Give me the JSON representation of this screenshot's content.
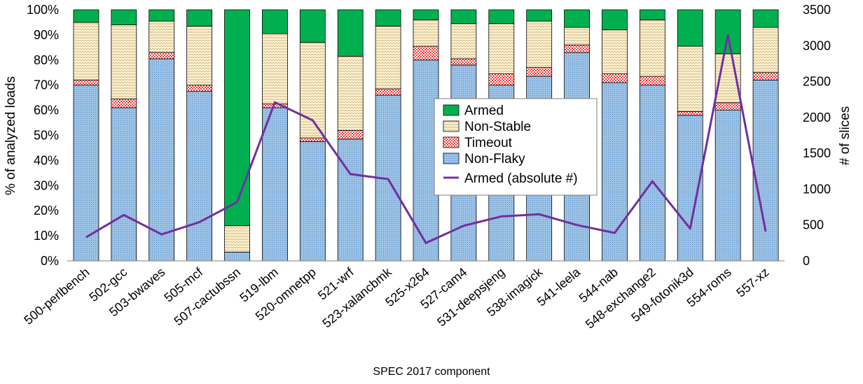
{
  "chart_data": {
    "type": "bar",
    "stacked": true,
    "title": "",
    "xlabel": "SPEC 2017 component",
    "ylabel": "% of analyzed loads",
    "y2label": "# of slices",
    "ylim": [
      0,
      100
    ],
    "y2lim": [
      0,
      3500
    ],
    "yticks": [
      "0%",
      "10%",
      "20%",
      "30%",
      "40%",
      "50%",
      "60%",
      "70%",
      "80%",
      "90%",
      "100%"
    ],
    "y2ticks": [
      "0",
      "500",
      "1000",
      "1500",
      "2000",
      "2500",
      "3000",
      "3500"
    ],
    "categories": [
      "500-perlbench",
      "502-gcc",
      "503-bwaves",
      "505-mcf",
      "507-cactubssn",
      "519-lbm",
      "520-omnetpp",
      "521-wrf",
      "523-xalancbmk",
      "525-x264",
      "527-cam4",
      "531-deepsjeng",
      "538-imagick",
      "541-leela",
      "544-nab",
      "548-exchange2",
      "549-fotonik3d",
      "554-roms",
      "557-xz"
    ],
    "series": [
      {
        "name": "Non-Flaky",
        "color": "#9dc3e6",
        "values": [
          70,
          61,
          80.5,
          67.5,
          3.5,
          61,
          47.5,
          48.5,
          66,
          80,
          78,
          70,
          73.5,
          83,
          71,
          70,
          58,
          60,
          72
        ]
      },
      {
        "name": "Timeout",
        "color": "#ff5a5a",
        "values": [
          2,
          3.5,
          2.5,
          2.5,
          0,
          1.5,
          1.5,
          3.5,
          2.5,
          5.5,
          2.5,
          4.5,
          3.5,
          3,
          3.5,
          3.5,
          1.5,
          3,
          3
        ]
      },
      {
        "name": "Non-Stable",
        "color": "#fff2cc",
        "values": [
          23,
          29.5,
          12.5,
          23.5,
          10.5,
          28,
          38,
          29.5,
          25,
          10.5,
          14,
          20,
          18.5,
          7,
          17.5,
          22.5,
          26,
          19.5,
          18
        ]
      },
      {
        "name": "Armed",
        "color": "#00b050",
        "values": [
          5,
          6,
          4.5,
          6.5,
          86,
          9.5,
          13,
          18.5,
          6.5,
          4,
          5.5,
          5.5,
          4.5,
          7,
          8,
          4,
          14.5,
          17.5,
          7
        ]
      }
    ],
    "line_series": {
      "name": "Armed (absolute #)",
      "color": "#7030a0",
      "axis": "y2",
      "values": [
        330,
        640,
        370,
        540,
        820,
        2210,
        1960,
        1210,
        1140,
        250,
        490,
        620,
        650,
        500,
        390,
        1110,
        450,
        3150,
        410
      ]
    },
    "legend": {
      "position": "center",
      "entries": [
        "Armed",
        "Non-Stable",
        "Timeout",
        "Non-Flaky",
        "Armed (absolute #)"
      ]
    }
  }
}
